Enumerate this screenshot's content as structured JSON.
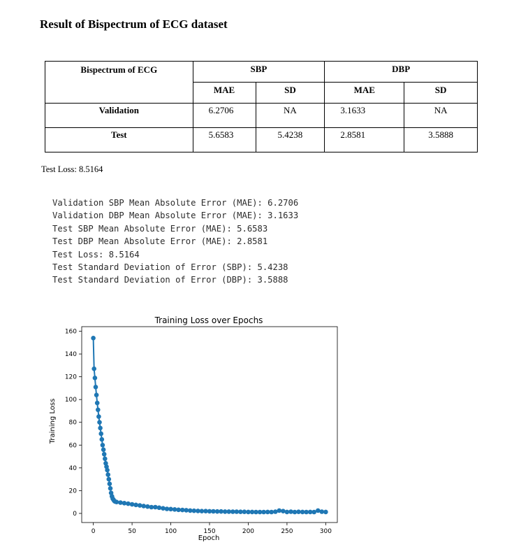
{
  "heading": "Result of Bispectrum of ECG dataset",
  "table": {
    "corner": "Bispectrum of ECG",
    "groups": [
      "SBP",
      "DBP"
    ],
    "subheaders": [
      "MAE",
      "SD",
      "MAE",
      "SD"
    ],
    "rows": [
      {
        "label": "Validation",
        "values": [
          "6.2706",
          "NA",
          "3.1633",
          "NA"
        ]
      },
      {
        "label": "Test",
        "values": [
          "5.6583",
          "5.4238",
          "2.8581",
          "3.5888"
        ]
      }
    ]
  },
  "test_loss_caption": "Test Loss: 8.5164",
  "console_lines": [
    "Validation SBP Mean Absolute Error (MAE): 6.2706",
    "Validation DBP Mean Absolute Error (MAE): 3.1633",
    "Test SBP Mean Absolute Error (MAE): 5.6583",
    "Test DBP Mean Absolute Error (MAE): 2.8581",
    "Test Loss: 8.5164",
    "Test Standard Deviation of Error (SBP): 5.4238",
    "Test Standard Deviation of Error (DBP): 3.5888"
  ],
  "chart_data": {
    "type": "line",
    "title": "Training Loss over Epochs",
    "xlabel": "Epoch",
    "ylabel": "Training Loss",
    "xlim": [
      -15,
      315
    ],
    "ylim": [
      -8,
      164
    ],
    "xticks": [
      0,
      50,
      100,
      150,
      200,
      250,
      300
    ],
    "yticks": [
      0,
      20,
      40,
      60,
      80,
      100,
      120,
      140,
      160
    ],
    "grid": false,
    "color": "#1f77b4",
    "markers": true,
    "series": [
      {
        "x": [
          0,
          1,
          2,
          3,
          4,
          5,
          6,
          7,
          8,
          9,
          10,
          11,
          12,
          13,
          14,
          15,
          16,
          17,
          18,
          19,
          20,
          21,
          22,
          23,
          24,
          25,
          26,
          27,
          28,
          30,
          35,
          40,
          45,
          50,
          55,
          60,
          65,
          70,
          75,
          80,
          85,
          90,
          95,
          100,
          105,
          110,
          115,
          120,
          125,
          130,
          135,
          140,
          145,
          150,
          155,
          160,
          165,
          170,
          175,
          180,
          185,
          190,
          195,
          200,
          205,
          210,
          215,
          220,
          225,
          230,
          235,
          240,
          245,
          250,
          255,
          260,
          265,
          270,
          275,
          280,
          285,
          290,
          295,
          300
        ],
        "y": [
          154,
          127,
          119,
          111,
          104,
          97,
          91,
          85,
          80,
          75,
          70,
          65,
          60,
          56,
          52,
          48,
          44,
          41,
          38,
          34,
          30,
          26,
          22,
          18,
          15,
          13,
          12,
          11,
          10.5,
          10,
          9.5,
          9,
          8.5,
          8,
          7.5,
          7,
          6.5,
          6,
          5.5,
          5.5,
          5,
          4.5,
          4,
          3.8,
          3.5,
          3.2,
          3,
          2.8,
          2.5,
          2.3,
          2.2,
          2,
          2,
          1.9,
          1.8,
          1.7,
          1.7,
          1.6,
          1.6,
          1.5,
          1.5,
          1.4,
          1.4,
          1.3,
          1.3,
          1.2,
          1.2,
          1.2,
          1.3,
          1.2,
          1.5,
          2.5,
          2,
          1.3,
          1.5,
          1.2,
          1.4,
          1.3,
          1.2,
          1.3,
          1.2,
          2.5,
          1.5,
          1.3
        ]
      }
    ]
  }
}
